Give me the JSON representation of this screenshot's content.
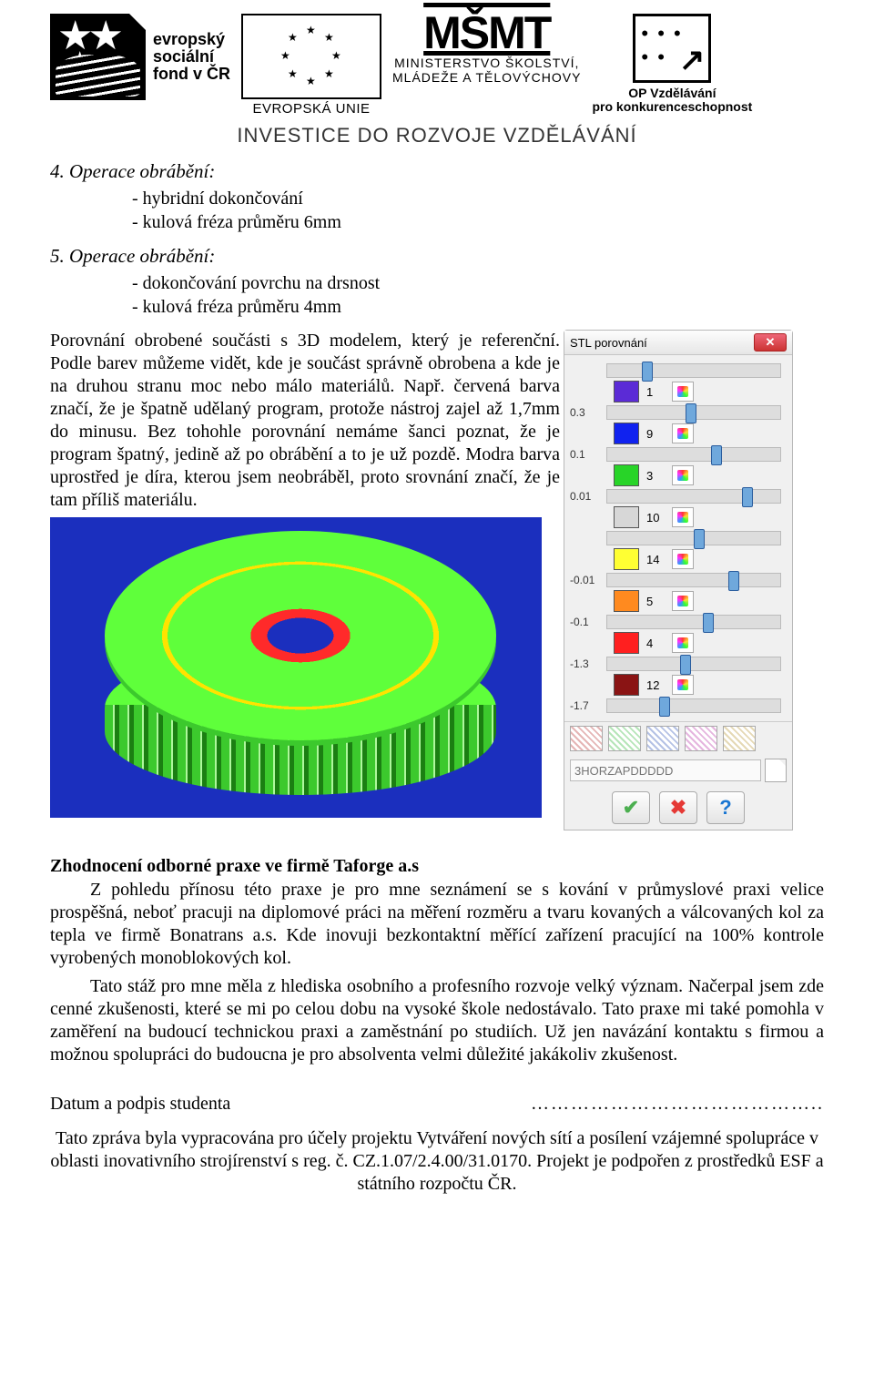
{
  "header": {
    "esf_text": "evropský\nsociální\nfond v ČR",
    "eu_label": "EVROPSKÁ UNIE",
    "msmt_logo": "MŠMT",
    "msmt_line1": "MINISTERSTVO ŠKOLSTVÍ,",
    "msmt_line2": "MLÁDEŽE A TĚLOVÝCHOVY",
    "opvk_line1": "OP Vzdělávání",
    "opvk_line2": "pro konkurenceschopnost",
    "invest": "INVESTICE DO ROZVOJE VZDĚLÁVÁNÍ"
  },
  "sections": {
    "op4_title": "4. Operace obrábění:",
    "op4_items": [
      "hybridní dokončování",
      "kulová fréza průměru 6mm"
    ],
    "op5_title": "5. Operace obrábění:",
    "op5_items": [
      "dokončování povrchu na drsnost",
      "kulová fréza průměru 4mm"
    ]
  },
  "paragraph": "Porovnání obrobené součásti s 3D modelem, který je referenční. Podle barev můžeme vidět, kde je součást správně obrobena a kde je na druhou stranu moc nebo málo materiálů. Např. červená barva značí, že je špatně udělaný program, protože nástroj zajel až 1,7mm do minusu. Bez tohohle porovnání nemáme šanci poznat, že je program špatný, jedině až po obrábění a to je už pozdě. Modra barva uprostřed je díra, kterou jsem neobráběl, proto srovnání značí, že je tam příliš materiálu.",
  "panel": {
    "title": "STL porovnání",
    "sliders": [
      {
        "label": "",
        "thumb_pct": 20
      },
      {
        "label": "0.3",
        "thumb_pct": 45
      },
      {
        "label": "0.1",
        "thumb_pct": 60
      },
      {
        "label": "0.01",
        "thumb_pct": 78
      },
      {
        "label": "",
        "thumb_pct": 50
      },
      {
        "label": "-0.01",
        "thumb_pct": 70
      },
      {
        "label": "-0.1",
        "thumb_pct": 55
      },
      {
        "label": "-1.3",
        "thumb_pct": 42
      },
      {
        "label": "-1.7",
        "thumb_pct": 30
      }
    ],
    "swatches": [
      {
        "color": "#5b2bd6",
        "count": "1"
      },
      {
        "color": "#1022ef",
        "count": "9"
      },
      {
        "color": "#28d428",
        "count": "3"
      },
      {
        "color": "#d7d7d7",
        "count": "10"
      },
      {
        "color": "#ffff33",
        "count": "14"
      },
      {
        "color": "#ff8a1f",
        "count": "5"
      },
      {
        "color": "#ff1f1f",
        "count": "4"
      },
      {
        "color": "#8a1414",
        "count": "12"
      }
    ],
    "hatches": [
      "#e5b5b5",
      "#b5e5b8",
      "#b5c2e5",
      "#e5b5df",
      "#e5d9b5"
    ],
    "input_placeholder": "3HORZAPDDDDD",
    "ok_color": "#4caf50",
    "cancel_color": "#e53935",
    "help_color": "#1976d2"
  },
  "eval_heading": "Zhodnocení odborné praxe ve firmě Taforge a.s",
  "eval_p1": "Z pohledu přínosu této praxe je pro mne seznámení se s kování v průmyslové praxi velice prospěšná, neboť pracuji na diplomové práci na měření rozměru a tvaru kovaných a válcovaných kol za tepla ve firmě Bonatrans a.s. Kde inovuji bezkontaktní měřící zařízení pracující na 100% kontrole vyrobených monoblokových kol.",
  "eval_p2": "Tato stáž pro mne měla z hlediska osobního a profesního rozvoje velký význam. Načerpal jsem zde cenné zkušenosti, které se mi po celou dobu na vysoké škole nedostávalo. Tato praxe mi také pomohla v zaměření na budoucí technickou praxi a zaměstnání po studiích. Už jen navázání kontaktu s firmou a možnou spolupráci do budoucna je pro absolventa velmi důležité jakákoliv zkušenost.",
  "signature_label": "Datum a podpis studenta",
  "signature_dots": "……………………………………..",
  "footer": "Tato zpráva byla vypracována pro účely projektu Vytváření nových sítí a posílení vzájemné spolupráce v oblasti inovativního strojírenství s reg. č. CZ.1.07/2.4.00/31.0170. Projekt je podpořen z prostředků ESF a státního rozpočtu ČR."
}
